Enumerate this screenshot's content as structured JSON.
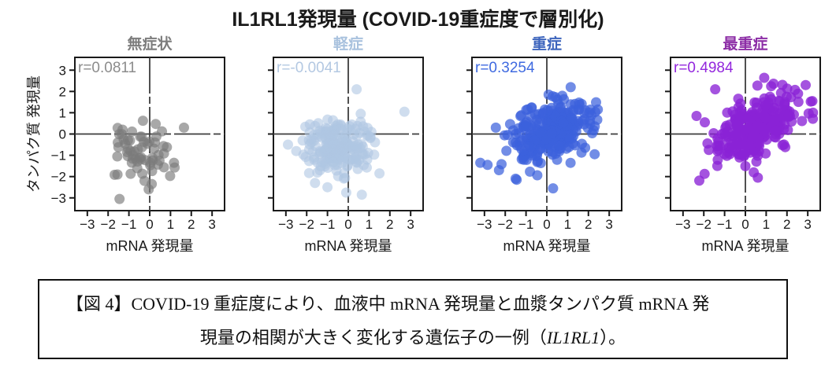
{
  "figure": {
    "title": "IL1RL1発現量 (COVID-19重症度で層別化)"
  },
  "chart_data": {
    "type": "scatter",
    "title": "IL1RL1発現量 (COVID-19重症度で層別化)",
    "xlabel": "mRNA 発現量",
    "ylabel": "タンパク質 発現量",
    "xlim": [
      -3.6,
      3.6
    ],
    "ylim": [
      -3.6,
      3.6
    ],
    "x_ticks": [
      -3,
      -2,
      -1,
      0,
      1,
      2,
      3
    ],
    "y_ticks": [
      3,
      2,
      1,
      0,
      -1,
      -2,
      -3
    ],
    "x_tick_labels": [
      "−3",
      "−2",
      "−1",
      "0",
      "1",
      "2",
      "3"
    ],
    "y_tick_labels": [
      "3",
      "2",
      "1",
      "0",
      "−1",
      "−2",
      "−3"
    ],
    "grid": false,
    "zero_lines": true,
    "frame_color": "#1a1a1a",
    "zero_line_color": "#3d3d3d",
    "tick_label_color": "#1a1a1a",
    "panels": [
      {
        "key": "asymptomatic",
        "title": "無症状",
        "title_color": "#7d7d7d",
        "r_label": "r=0.0811",
        "r_value": 0.0811,
        "r_label_color": "#8c8c8c",
        "dot_color": "#7b7b7b",
        "dot_opacity": 0.66,
        "n_points": 58,
        "seed": 7,
        "dist": {
          "x_mean": -0.35,
          "y_mean": -0.85,
          "x_sd": 0.78,
          "y_sd": 0.8,
          "corr": 0.08
        },
        "gen_range": {
          "x": [
            -2.15,
            1.5
          ],
          "y": [
            -2.05,
            0.72
          ]
        },
        "outliers": [
          [
            -1.45,
            -3.05
          ],
          [
            -0.25,
            -2.2
          ],
          [
            0.1,
            -2.35
          ],
          [
            1.65,
            0.3
          ],
          [
            -0.05,
            -2.6
          ],
          [
            -1.55,
            -1.9
          ]
        ],
        "show_y_tick_labels": true
      },
      {
        "key": "mild",
        "title": "軽症",
        "title_color": "#a9c2de",
        "r_label": "r=-0.0041",
        "r_value": -0.0041,
        "r_label_color": "#b3c8e2",
        "dot_color": "#afc6e2",
        "dot_opacity": 0.6,
        "n_points": 200,
        "seed": 12,
        "dist": {
          "x_mean": -0.55,
          "y_mean": -0.55,
          "x_sd": 0.78,
          "y_sd": 0.62,
          "corr": 0.0
        },
        "gen_range": {
          "x": [
            -2.25,
            1.55
          ],
          "y": [
            -2.1,
            0.85
          ]
        },
        "outliers": [
          [
            0.4,
            2.1
          ],
          [
            0.6,
            0.95
          ],
          [
            2.7,
            1.05
          ],
          [
            -2.9,
            -0.5
          ],
          [
            -2.5,
            -0.8
          ],
          [
            -1.0,
            -2.5
          ],
          [
            -0.1,
            -2.75
          ],
          [
            0.65,
            -2.85
          ],
          [
            1.5,
            -1.85
          ],
          [
            -1.6,
            -2.3
          ]
        ],
        "show_y_tick_labels": false
      },
      {
        "key": "severe",
        "title": "重症",
        "title_color": "#3d65bd",
        "r_label": "r=0.3254",
        "r_value": 0.3254,
        "r_label_color": "#3f6ae0",
        "dot_color": "#3b61dc",
        "dot_opacity": 0.72,
        "n_points": 270,
        "seed": 23,
        "dist": {
          "x_mean": 0.1,
          "y_mean": 0.05,
          "x_sd": 1.0,
          "y_sd": 0.78,
          "corr": 0.42
        },
        "gen_range": {
          "x": [
            -2.6,
            2.45
          ],
          "y": [
            -2.2,
            2.2
          ]
        },
        "outliers": [
          [
            -3.2,
            -1.35
          ],
          [
            -2.85,
            -1.45
          ],
          [
            -2.45,
            0.3
          ],
          [
            -2.3,
            -1.7
          ],
          [
            0.3,
            -2.55
          ],
          [
            1.15,
            2.2
          ],
          [
            2.45,
            1.15
          ],
          [
            2.3,
            -0.95
          ],
          [
            -1.5,
            -2.1
          ]
        ],
        "show_y_tick_labels": false
      },
      {
        "key": "most_severe",
        "title": "最重症",
        "title_color": "#8c2da6",
        "r_label": "r=0.4984",
        "r_value": 0.4984,
        "r_label_color": "#9327dd",
        "dot_color": "#8b23d6",
        "dot_opacity": 0.78,
        "n_points": 280,
        "seed": 31,
        "dist": {
          "x_mean": 0.55,
          "y_mean": 0.35,
          "x_sd": 1.05,
          "y_sd": 0.82,
          "corr": 0.55
        },
        "gen_range": {
          "x": [
            -2.4,
            3.25
          ],
          "y": [
            -2.25,
            2.85
          ]
        },
        "outliers": [
          [
            -2.35,
            0.85
          ],
          [
            -1.95,
            0.55
          ],
          [
            -1.45,
            2.1
          ],
          [
            0.4,
            -1.8
          ],
          [
            0.6,
            -2.05
          ],
          [
            3.25,
            1.0
          ],
          [
            2.9,
            2.3
          ],
          [
            -1.35,
            -1.5
          ]
        ],
        "show_y_tick_labels": false
      }
    ]
  },
  "caption": {
    "line1": "【図 4】COVID-19 重症度により、血液中 mRNA 発現量と血漿タンパク質 mRNA 発",
    "line2_prefix": "現量の相関が大きく変化する遺伝子の一例（",
    "line2_gene": "IL1RL1",
    "line2_suffix": "）。"
  }
}
